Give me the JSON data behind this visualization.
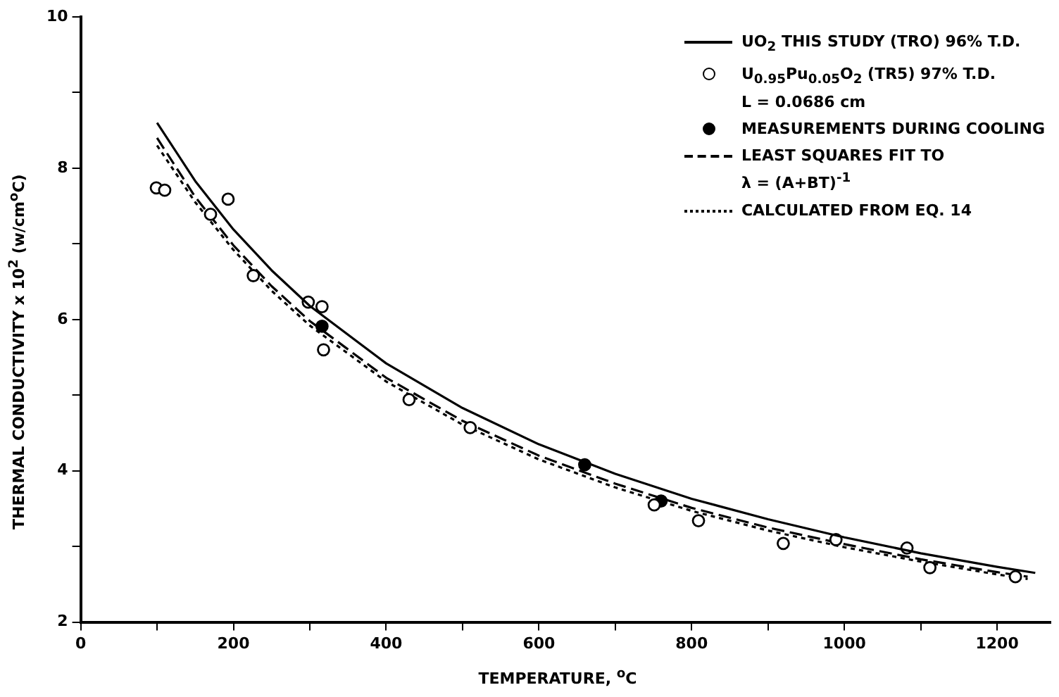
{
  "chart_data": {
    "type": "line",
    "xlabel": "TEMPERATURE, $^{o}$C",
    "ylabel": "THERMAL CONDUCTIVITY x 10$^{2}$ (w/cm$^{o}$C)",
    "xlim": [
      0,
      1270
    ],
    "ylim": [
      2,
      10
    ],
    "xticks": [
      0,
      {
        "value": 100,
        "label": null
      },
      200,
      {
        "value": 300,
        "label": null
      },
      400,
      {
        "value": 500,
        "label": null
      },
      600,
      {
        "value": 700,
        "label": null
      },
      800,
      {
        "value": 900,
        "label": null
      },
      1000,
      {
        "value": 1100,
        "label": null
      },
      1200
    ],
    "yticks": [
      2,
      {
        "value": 3,
        "label": null
      },
      4,
      {
        "value": 5,
        "label": null
      },
      6,
      {
        "value": 7,
        "label": null
      },
      8,
      {
        "value": 9,
        "label": null
      },
      10
    ],
    "grid": false,
    "legend": "top right",
    "series": [
      {
        "name": "UO$_{2}$ THIS STUDY (TRO) 96% T.D.",
        "line_style": "solid",
        "color": "#000000",
        "x": [
          100,
          150,
          200,
          250,
          300,
          400,
          500,
          600,
          700,
          800,
          900,
          1000,
          1100,
          1200,
          1250
        ],
        "values": [
          8.6,
          7.83,
          7.19,
          6.65,
          6.18,
          5.42,
          4.83,
          4.35,
          3.96,
          3.63,
          3.36,
          3.12,
          2.91,
          2.73,
          2.65
        ]
      },
      {
        "name": "U$_{0.95}$Pu$_{0.05}$O$_{2}$ (TR5) 97% T.D.\nL = 0.0686 cm",
        "type": "scatter",
        "marker": "circle",
        "x": [
          99,
          110,
          170,
          193,
          226,
          298,
          316,
          318,
          430,
          510,
          751,
          809,
          920,
          989,
          1082,
          1112,
          1224
        ],
        "values": [
          7.74,
          7.71,
          7.39,
          7.59,
          6.58,
          6.23,
          6.17,
          5.6,
          4.94,
          4.57,
          3.55,
          3.34,
          3.04,
          3.09,
          2.98,
          2.72,
          2.6
        ]
      },
      {
        "name": "MEASUREMENTS DURING COOLING",
        "type": "scatter",
        "marker": "circle",
        "color": "#000000",
        "x": [
          316,
          660,
          760
        ],
        "values": [
          5.91,
          4.08,
          3.6
        ]
      },
      {
        "name": "LEAST SQUARES FIT TO\nλ = (A+BT)$^{-1}$",
        "line_style": "dashed",
        "color": "#000000",
        "x": [
          100,
          150,
          200,
          250,
          300,
          400,
          500,
          600,
          700,
          800,
          900,
          1000,
          1100,
          1200,
          1240
        ],
        "values": [
          8.4,
          7.62,
          6.98,
          6.44,
          5.98,
          5.23,
          4.66,
          4.2,
          3.83,
          3.51,
          3.25,
          3.03,
          2.83,
          2.66,
          2.6
        ]
      },
      {
        "name": "CALCULATED FROM EQ. 14",
        "line_style": "dotted",
        "color": "#000000",
        "x": [
          100,
          150,
          200,
          250,
          300,
          400,
          500,
          600,
          700,
          800,
          900,
          1000,
          1100,
          1200,
          1240
        ],
        "values": [
          8.3,
          7.55,
          6.92,
          6.38,
          5.92,
          5.18,
          4.61,
          4.15,
          3.78,
          3.47,
          3.21,
          2.99,
          2.8,
          2.63,
          2.57
        ]
      }
    ]
  }
}
